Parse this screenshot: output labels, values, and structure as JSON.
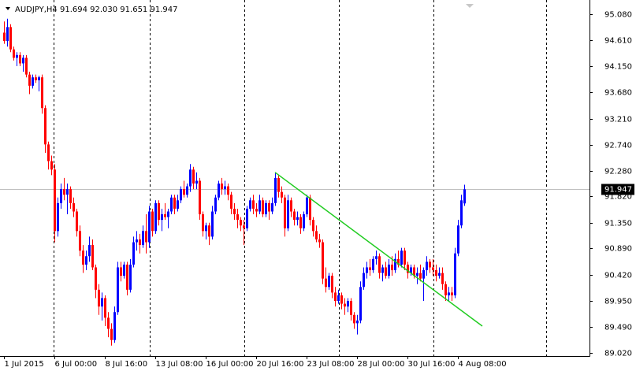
{
  "chart_data": {
    "type": "candlestick",
    "title": "AUDJPY,H4  91.694 92.030 91.651 91.947",
    "up_color": "#0000ff",
    "down_color": "#ff0000",
    "ylim": [
      88.964,
      95.334
    ],
    "yticks": [
      {
        "value": 95.08,
        "label": "95.080"
      },
      {
        "value": 94.61,
        "label": "94.610"
      },
      {
        "value": 94.15,
        "label": "94.150"
      },
      {
        "value": 93.68,
        "label": "93.680"
      },
      {
        "value": 93.21,
        "label": "93.210"
      },
      {
        "value": 92.74,
        "label": "92.740"
      },
      {
        "value": 92.28,
        "label": "92.280"
      },
      {
        "value": 91.82,
        "label": "91.820"
      },
      {
        "value": 91.35,
        "label": "91.350"
      },
      {
        "value": 90.89,
        "label": "90.890"
      },
      {
        "value": 90.42,
        "label": "90.420"
      },
      {
        "value": 89.95,
        "label": "89.950"
      },
      {
        "value": 89.49,
        "label": "89.490"
      },
      {
        "value": 89.02,
        "label": "89.020"
      }
    ],
    "xlim": [
      -1.25,
      185.75
    ],
    "xticks": [
      {
        "value": 0,
        "label": "1 Jul 2015"
      },
      {
        "value": 16,
        "label": "6 Jul 00:00"
      },
      {
        "value": 32,
        "label": "8 Jul 16:00"
      },
      {
        "value": 48,
        "label": "13 Jul 08:00"
      },
      {
        "value": 64,
        "label": "16 Jul 00:00"
      },
      {
        "value": 80,
        "label": "20 Jul 16:00"
      },
      {
        "value": 96,
        "label": "23 Jul 08:00"
      },
      {
        "value": 112,
        "label": "28 Jul 00:00"
      },
      {
        "value": 128,
        "label": "30 Jul 16:00"
      },
      {
        "value": 144,
        "label": "4 Aug 08:00"
      }
    ],
    "period_separators": [
      15.75,
      46.25,
      76.25,
      106.25,
      136.25,
      172
    ],
    "last_price": 91.947,
    "last_price_line_color": "#c0c0c0",
    "trendline": {
      "x": [
        86,
        151.75
      ],
      "y": [
        92.25,
        89.5
      ],
      "color": "#22cc22"
    },
    "ohlc": [
      [
        94.75,
        94.95,
        94.55,
        94.6
      ],
      [
        94.6,
        95.0,
        94.5,
        94.85
      ],
      [
        94.85,
        94.9,
        94.4,
        94.45
      ],
      [
        94.45,
        94.5,
        94.25,
        94.3
      ],
      [
        94.3,
        94.4,
        94.15,
        94.35
      ],
      [
        94.35,
        94.4,
        94.15,
        94.2
      ],
      [
        94.2,
        94.35,
        94.05,
        94.3
      ],
      [
        94.3,
        94.35,
        93.95,
        94.0
      ],
      [
        94.0,
        94.05,
        93.65,
        93.8
      ],
      [
        93.8,
        94.0,
        93.75,
        93.95
      ],
      [
        93.95,
        94.0,
        93.85,
        93.9
      ],
      [
        93.9,
        93.98,
        93.7,
        93.95
      ],
      [
        93.95,
        94.0,
        93.3,
        93.4
      ],
      [
        93.4,
        93.45,
        92.6,
        92.75
      ],
      [
        92.75,
        92.8,
        92.3,
        92.45
      ],
      [
        92.45,
        92.55,
        92.2,
        92.3
      ],
      [
        92.3,
        92.4,
        91.0,
        91.2
      ],
      [
        91.2,
        91.8,
        91.1,
        91.7
      ],
      [
        91.7,
        92.05,
        91.6,
        91.95
      ],
      [
        91.95,
        92.15,
        91.75,
        91.85
      ],
      [
        91.85,
        92.05,
        91.5,
        91.95
      ],
      [
        91.95,
        92.0,
        91.6,
        91.7
      ],
      [
        91.7,
        91.8,
        91.45,
        91.55
      ],
      [
        91.55,
        91.6,
        91.1,
        91.2
      ],
      [
        91.2,
        91.3,
        90.75,
        90.85
      ],
      [
        90.85,
        90.95,
        90.45,
        90.6
      ],
      [
        90.6,
        90.85,
        90.5,
        90.75
      ],
      [
        90.75,
        91.1,
        90.65,
        90.95
      ],
      [
        90.95,
        91.05,
        90.5,
        90.55
      ],
      [
        90.55,
        90.6,
        90.0,
        90.15
      ],
      [
        90.15,
        90.25,
        89.7,
        89.85
      ],
      [
        89.85,
        90.1,
        89.6,
        90.0
      ],
      [
        90.0,
        90.05,
        89.5,
        89.65
      ],
      [
        89.65,
        89.75,
        89.3,
        89.45
      ],
      [
        89.45,
        89.55,
        89.15,
        89.25
      ],
      [
        89.25,
        89.85,
        89.2,
        89.75
      ],
      [
        89.75,
        90.65,
        89.7,
        90.55
      ],
      [
        90.55,
        90.65,
        90.3,
        90.4
      ],
      [
        90.4,
        90.65,
        90.35,
        90.6
      ],
      [
        90.6,
        90.65,
        90.05,
        90.15
      ],
      [
        90.15,
        90.7,
        90.1,
        90.6
      ],
      [
        90.6,
        91.1,
        90.55,
        91.0
      ],
      [
        91.0,
        91.2,
        90.85,
        91.05
      ],
      [
        91.05,
        91.15,
        90.8,
        90.95
      ],
      [
        90.95,
        91.3,
        90.9,
        91.2
      ],
      [
        91.2,
        91.5,
        90.8,
        91.0
      ],
      [
        91.0,
        91.65,
        90.9,
        91.55
      ],
      [
        91.55,
        91.6,
        91.1,
        91.2
      ],
      [
        91.2,
        91.75,
        91.15,
        91.7
      ],
      [
        91.7,
        91.75,
        91.3,
        91.4
      ],
      [
        91.4,
        91.6,
        91.2,
        91.5
      ],
      [
        91.5,
        91.7,
        91.4,
        91.45
      ],
      [
        91.45,
        91.6,
        91.25,
        91.55
      ],
      [
        91.55,
        91.85,
        91.5,
        91.8
      ],
      [
        91.8,
        91.85,
        91.5,
        91.6
      ],
      [
        91.6,
        91.85,
        91.55,
        91.75
      ],
      [
        91.75,
        92.0,
        91.7,
        91.95
      ],
      [
        91.95,
        92.1,
        91.8,
        91.85
      ],
      [
        91.85,
        92.05,
        91.8,
        92.0
      ],
      [
        92.0,
        92.4,
        91.9,
        92.3
      ],
      [
        92.3,
        92.35,
        91.95,
        92.05
      ],
      [
        92.05,
        92.25,
        91.95,
        92.1
      ],
      [
        92.1,
        92.15,
        91.4,
        91.5
      ],
      [
        91.5,
        91.55,
        91.1,
        91.2
      ],
      [
        91.2,
        91.35,
        91.05,
        91.3
      ],
      [
        91.3,
        91.35,
        90.95,
        91.1
      ],
      [
        91.1,
        91.65,
        91.05,
        91.55
      ],
      [
        91.55,
        91.85,
        91.5,
        91.8
      ],
      [
        91.8,
        92.1,
        91.75,
        92.05
      ],
      [
        92.05,
        92.15,
        91.85,
        91.95
      ],
      [
        91.95,
        92.1,
        91.85,
        92.0
      ],
      [
        92.0,
        92.05,
        91.75,
        91.85
      ],
      [
        91.85,
        91.9,
        91.5,
        91.6
      ],
      [
        91.6,
        91.7,
        91.4,
        91.5
      ],
      [
        91.5,
        91.6,
        91.25,
        91.4
      ],
      [
        91.4,
        91.45,
        91.2,
        91.3
      ],
      [
        91.3,
        91.4,
        90.95,
        91.25
      ],
      [
        91.25,
        91.65,
        91.2,
        91.6
      ],
      [
        91.6,
        91.8,
        91.55,
        91.75
      ],
      [
        91.75,
        91.85,
        91.5,
        91.6
      ],
      [
        91.6,
        91.7,
        91.45,
        91.55
      ],
      [
        91.55,
        91.85,
        91.5,
        91.75
      ],
      [
        91.75,
        91.8,
        91.45,
        91.5
      ],
      [
        91.5,
        91.75,
        91.45,
        91.7
      ],
      [
        91.7,
        91.75,
        91.4,
        91.55
      ],
      [
        91.55,
        91.8,
        91.5,
        91.7
      ],
      [
        91.7,
        92.25,
        91.65,
        92.15
      ],
      [
        92.15,
        92.2,
        91.8,
        91.9
      ],
      [
        91.9,
        92.0,
        91.7,
        91.8
      ],
      [
        91.8,
        91.85,
        91.1,
        91.25
      ],
      [
        91.25,
        91.85,
        91.2,
        91.75
      ],
      [
        91.75,
        91.8,
        91.45,
        91.55
      ],
      [
        91.55,
        91.6,
        91.3,
        91.4
      ],
      [
        91.4,
        91.55,
        91.3,
        91.45
      ],
      [
        91.45,
        91.5,
        91.15,
        91.25
      ],
      [
        91.25,
        91.55,
        91.2,
        91.5
      ],
      [
        91.5,
        91.85,
        91.45,
        91.8
      ],
      [
        91.8,
        91.85,
        91.3,
        91.4
      ],
      [
        91.4,
        91.45,
        91.1,
        91.2
      ],
      [
        91.2,
        91.3,
        91.0,
        91.05
      ],
      [
        91.05,
        91.15,
        90.9,
        91.0
      ],
      [
        91.0,
        91.05,
        90.25,
        90.35
      ],
      [
        90.35,
        90.55,
        90.1,
        90.2
      ],
      [
        90.2,
        90.45,
        90.15,
        90.4
      ],
      [
        90.4,
        90.45,
        90.0,
        90.1
      ],
      [
        90.1,
        90.2,
        89.85,
        89.95
      ],
      [
        89.95,
        90.15,
        89.9,
        90.05
      ],
      [
        90.05,
        90.1,
        89.8,
        89.9
      ],
      [
        89.9,
        90.0,
        89.7,
        89.85
      ],
      [
        89.85,
        90.0,
        89.75,
        89.95
      ],
      [
        89.95,
        90.0,
        89.6,
        89.7
      ],
      [
        89.7,
        89.75,
        89.45,
        89.55
      ],
      [
        89.55,
        89.7,
        89.35,
        89.6
      ],
      [
        89.6,
        90.3,
        89.55,
        90.2
      ],
      [
        90.2,
        90.55,
        90.15,
        90.45
      ],
      [
        90.45,
        90.65,
        90.35,
        90.55
      ],
      [
        90.55,
        90.7,
        90.4,
        90.5
      ],
      [
        90.5,
        90.75,
        90.45,
        90.7
      ],
      [
        90.7,
        90.85,
        90.6,
        90.75
      ],
      [
        90.75,
        90.8,
        90.35,
        90.45
      ],
      [
        90.45,
        90.6,
        90.3,
        90.55
      ],
      [
        90.55,
        90.65,
        90.35,
        90.4
      ],
      [
        90.4,
        90.7,
        90.35,
        90.6
      ],
      [
        90.6,
        90.75,
        90.4,
        90.5
      ],
      [
        90.5,
        90.8,
        90.45,
        90.7
      ],
      [
        90.7,
        90.85,
        90.55,
        90.6
      ],
      [
        90.6,
        90.9,
        90.55,
        90.85
      ],
      [
        90.85,
        90.9,
        90.5,
        90.6
      ],
      [
        90.6,
        90.65,
        90.35,
        90.45
      ],
      [
        90.45,
        90.6,
        90.4,
        90.55
      ],
      [
        90.55,
        90.6,
        90.35,
        90.4
      ],
      [
        90.4,
        90.55,
        90.25,
        90.45
      ],
      [
        90.45,
        90.6,
        90.3,
        90.35
      ],
      [
        90.35,
        90.55,
        89.95,
        90.5
      ],
      [
        90.5,
        90.75,
        90.4,
        90.65
      ],
      [
        90.65,
        90.7,
        90.45,
        90.55
      ],
      [
        90.55,
        90.7,
        90.4,
        90.5
      ],
      [
        90.5,
        90.6,
        90.3,
        90.4
      ],
      [
        90.4,
        90.55,
        90.35,
        90.45
      ],
      [
        90.45,
        90.55,
        90.15,
        90.25
      ],
      [
        90.25,
        90.3,
        89.95,
        90.05
      ],
      [
        90.05,
        90.2,
        89.95,
        90.1
      ],
      [
        90.1,
        90.2,
        89.95,
        90.05
      ],
      [
        90.05,
        90.9,
        90.0,
        90.8
      ],
      [
        90.8,
        91.4,
        90.75,
        91.3
      ],
      [
        91.3,
        91.85,
        91.25,
        91.75
      ],
      [
        91.694,
        92.03,
        91.651,
        91.947
      ]
    ]
  }
}
